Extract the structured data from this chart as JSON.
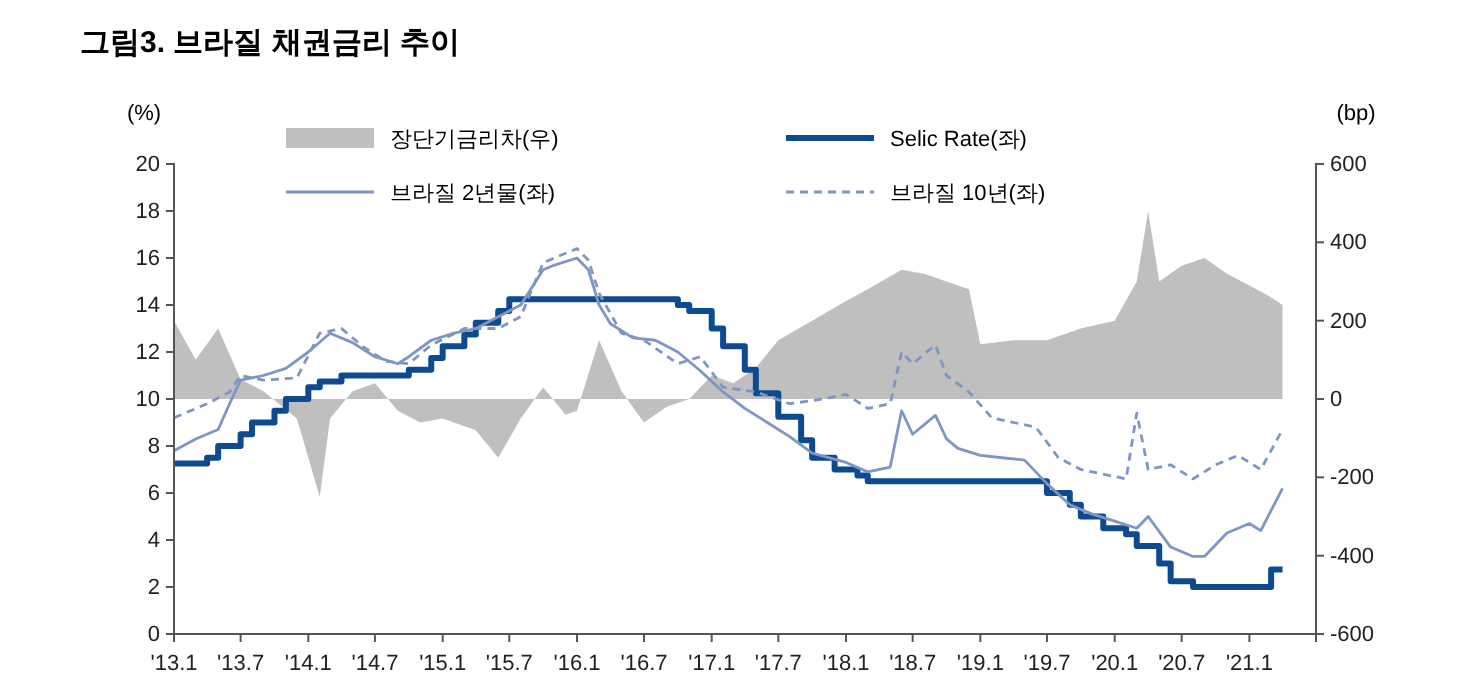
{
  "chart_data": {
    "type": "line",
    "title": "그림3. 브라질 채권금리 추이",
    "ylabel": "(%)",
    "y2label": "(bp)",
    "xlim": [
      "2013-01",
      "2021-07"
    ],
    "xticks": [
      {
        "value": "2013-01",
        "label": "'13.1"
      },
      {
        "value": "2013-07",
        "label": "'13.7"
      },
      {
        "value": "2014-01",
        "label": "'14.1"
      },
      {
        "value": "2014-07",
        "label": "'14.7"
      },
      {
        "value": "2015-01",
        "label": "'15.1"
      },
      {
        "value": "2015-07",
        "label": "'15.7"
      },
      {
        "value": "2016-01",
        "label": "'16.1"
      },
      {
        "value": "2016-07",
        "label": "'16.7"
      },
      {
        "value": "2017-01",
        "label": "'17.1"
      },
      {
        "value": "2017-07",
        "label": "'17.7"
      },
      {
        "value": "2018-01",
        "label": "'18.1"
      },
      {
        "value": "2018-07",
        "label": "'18.7"
      },
      {
        "value": "2019-01",
        "label": "'19.1"
      },
      {
        "value": "2019-07",
        "label": "'19.7"
      },
      {
        "value": "2020-01",
        "label": "'20.1"
      },
      {
        "value": "2020-07",
        "label": "'20.7"
      },
      {
        "value": "2021-01",
        "label": "'21.1"
      }
    ],
    "ylim": [
      0,
      20
    ],
    "yticks": [
      0,
      2,
      4,
      6,
      8,
      10,
      12,
      14,
      16,
      18,
      20
    ],
    "y2lim": [
      -600,
      600
    ],
    "y2ticks": [
      -600,
      -400,
      -200,
      0,
      200,
      400,
      600
    ],
    "grid": false,
    "legend": "top",
    "marker": "none",
    "series": [
      {
        "name": "장단기금리차(우)",
        "type": "area",
        "axis": "y2",
        "color": "#bfbfbf",
        "x": [
          "2013-01",
          "2013-03",
          "2013-05",
          "2013-07",
          "2013-09",
          "2013-12",
          "2014-02",
          "2014-03",
          "2014-05",
          "2014-07",
          "2014-09",
          "2014-11",
          "2015-01",
          "2015-04",
          "2015-06",
          "2015-08",
          "2015-10",
          "2015-12",
          "2016-01",
          "2016-03",
          "2016-05",
          "2016-07",
          "2016-09",
          "2016-11",
          "2017-01",
          "2017-03",
          "2017-05",
          "2017-07",
          "2017-10",
          "2018-01",
          "2018-03",
          "2018-06",
          "2018-08",
          "2018-10",
          "2018-12",
          "2019-01",
          "2019-04",
          "2019-07",
          "2019-10",
          "2020-01",
          "2020-03",
          "2020-04",
          "2020-05",
          "2020-07",
          "2020-09",
          "2020-11",
          "2021-01",
          "2021-03",
          "2021-04"
        ],
        "values": [
          200,
          100,
          180,
          50,
          20,
          -50,
          -250,
          -50,
          20,
          40,
          -30,
          -60,
          -50,
          -80,
          -150,
          -50,
          30,
          -40,
          -30,
          150,
          20,
          -60,
          -20,
          0,
          60,
          40,
          80,
          150,
          200,
          250,
          280,
          330,
          320,
          300,
          280,
          140,
          150,
          150,
          180,
          200,
          300,
          480,
          300,
          340,
          360,
          320,
          290,
          260,
          240
        ]
      },
      {
        "name": "Selic Rate(좌)",
        "type": "step",
        "color": "#0d4a8f",
        "x": [
          "2013-01",
          "2013-04",
          "2013-05",
          "2013-07",
          "2013-08",
          "2013-10",
          "2013-11",
          "2014-01",
          "2014-02",
          "2014-04",
          "2014-10",
          "2014-12",
          "2015-01",
          "2015-03",
          "2015-04",
          "2015-06",
          "2015-07",
          "2016-10",
          "2016-11",
          "2017-01",
          "2017-02",
          "2017-04",
          "2017-05",
          "2017-07",
          "2017-09",
          "2017-10",
          "2017-12",
          "2018-02",
          "2018-03",
          "2019-07",
          "2019-09",
          "2019-10",
          "2019-12",
          "2020-02",
          "2020-03",
          "2020-05",
          "2020-06",
          "2020-08",
          "2021-03",
          "2021-04"
        ],
        "values": [
          7.25,
          7.5,
          8,
          8.5,
          9,
          9.5,
          10,
          10.5,
          10.75,
          11,
          11.25,
          11.75,
          12.25,
          12.75,
          13.25,
          13.75,
          14.25,
          14,
          13.75,
          13,
          12.25,
          11.25,
          10.25,
          9.25,
          8.25,
          7.5,
          7,
          6.75,
          6.5,
          6,
          5.5,
          5,
          4.5,
          4.25,
          3.75,
          3,
          2.25,
          2,
          2.75,
          2.75
        ]
      },
      {
        "name": "브라질 2년물(좌)",
        "color": "#7f95c4",
        "line_style": "solid",
        "x": [
          "2013-01",
          "2013-03",
          "2013-05",
          "2013-06",
          "2013-07",
          "2013-09",
          "2013-11",
          "2014-01",
          "2014-03",
          "2014-05",
          "2014-07",
          "2014-09",
          "2014-10",
          "2014-12",
          "2015-02",
          "2015-04",
          "2015-06",
          "2015-08",
          "2015-10",
          "2015-11",
          "2016-01",
          "2016-02",
          "2016-03",
          "2016-04",
          "2016-06",
          "2016-08",
          "2016-10",
          "2016-12",
          "2017-02",
          "2017-04",
          "2017-06",
          "2017-08",
          "2017-10",
          "2018-01",
          "2018-03",
          "2018-05",
          "2018-06",
          "2018-07",
          "2018-09",
          "2018-10",
          "2018-11",
          "2019-01",
          "2019-03",
          "2019-05",
          "2019-07",
          "2019-09",
          "2019-11",
          "2020-01",
          "2020-03",
          "2020-04",
          "2020-06",
          "2020-08",
          "2020-09",
          "2020-11",
          "2021-01",
          "2021-02",
          "2021-04"
        ],
        "values": [
          7.8,
          8.3,
          8.7,
          9.8,
          10.8,
          11,
          11.3,
          12,
          12.8,
          12.4,
          11.8,
          11.5,
          11.8,
          12.5,
          12.8,
          13,
          13.5,
          14,
          15.5,
          15.7,
          16,
          15.5,
          14,
          13.2,
          12.6,
          12.5,
          12,
          11.2,
          10.3,
          9.6,
          9,
          8.4,
          7.7,
          7.3,
          6.9,
          7.1,
          9.5,
          8.5,
          9.3,
          8.3,
          7.9,
          7.6,
          7.5,
          7.4,
          6.4,
          5.5,
          5.1,
          4.8,
          4.5,
          5,
          3.7,
          3.3,
          3.3,
          4.3,
          4.7,
          4.4,
          6.2
        ]
      },
      {
        "name": "브라질 10년(좌)",
        "color": "#7f95c4",
        "line_style": "dashed",
        "x": [
          "2013-01",
          "2013-04",
          "2013-06",
          "2013-07",
          "2013-09",
          "2013-12",
          "2014-02",
          "2014-04",
          "2014-06",
          "2014-08",
          "2014-10",
          "2014-12",
          "2015-03",
          "2015-06",
          "2015-08",
          "2015-10",
          "2016-01",
          "2016-02",
          "2016-03",
          "2016-05",
          "2016-07",
          "2016-10",
          "2016-12",
          "2017-02",
          "2017-05",
          "2017-08",
          "2017-11",
          "2018-01",
          "2018-03",
          "2018-05",
          "2018-06",
          "2018-07",
          "2018-09",
          "2018-10",
          "2018-12",
          "2019-02",
          "2019-04",
          "2019-06",
          "2019-08",
          "2019-10",
          "2019-12",
          "2020-02",
          "2020-03",
          "2020-04",
          "2020-06",
          "2020-08",
          "2020-10",
          "2020-12",
          "2021-02",
          "2021-04"
        ],
        "values": [
          9.2,
          9.8,
          10.3,
          11,
          10.8,
          10.9,
          12.8,
          13,
          12.2,
          11.6,
          11.5,
          12.3,
          13,
          13,
          13.5,
          15.8,
          16.4,
          15.9,
          14.5,
          12.8,
          12.5,
          11.5,
          11.8,
          10.5,
          10.3,
          9.8,
          10,
          10.2,
          9.6,
          9.8,
          12,
          11.5,
          12.3,
          11,
          10.3,
          9.2,
          9,
          8.8,
          7.5,
          7,
          6.8,
          6.6,
          9.4,
          7,
          7.2,
          6.6,
          7.2,
          7.6,
          7,
          8.7
        ]
      }
    ]
  }
}
